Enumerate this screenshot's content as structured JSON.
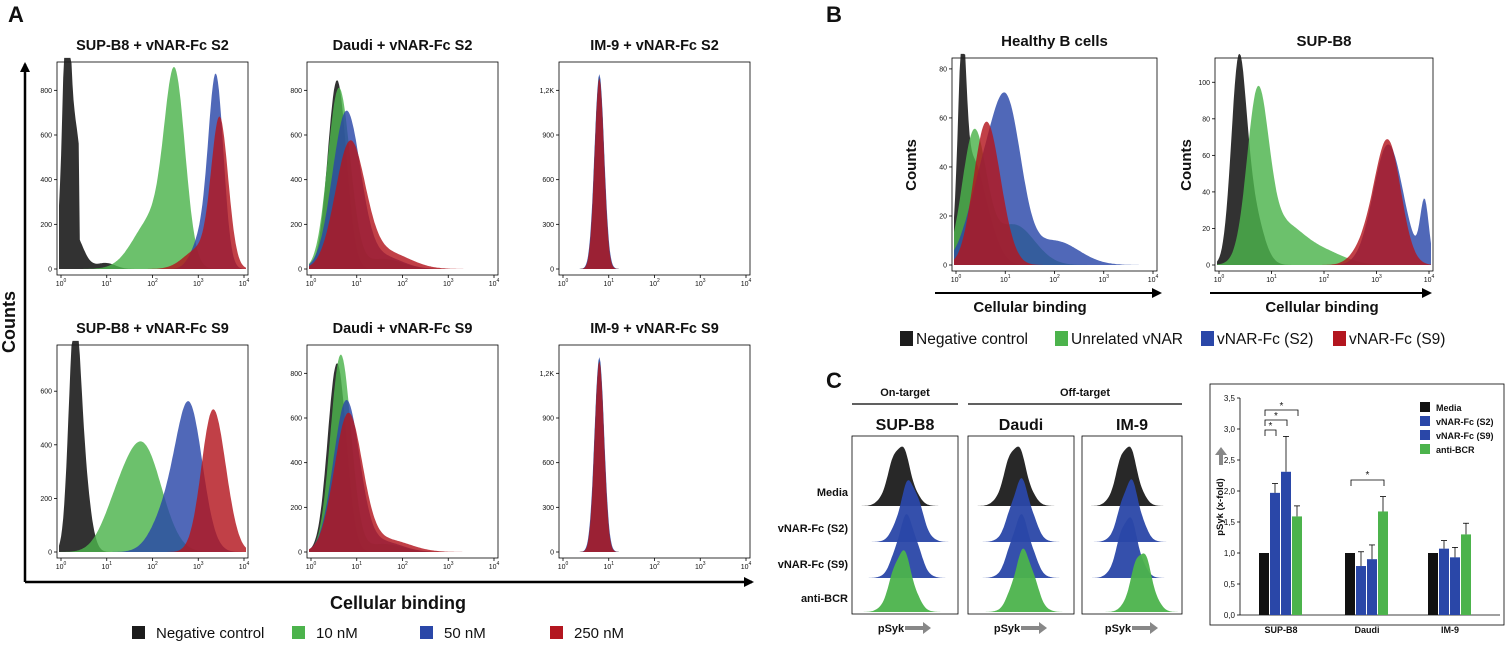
{
  "panel_labels": [
    "A",
    "B",
    "C"
  ],
  "colors": {
    "negative": "#1c1c1c",
    "green": "#4cb34c",
    "blue": "#2a47a8",
    "red": "#b3161f",
    "arrow": "#888888"
  },
  "panelA": {
    "ylabel": "Counts",
    "xlabel": "Cellular binding",
    "plots": [
      {
        "title": "SUP-B8 + vNAR-Fc S2",
        "yticks": [
          "0",
          "200",
          "400",
          "600",
          "800"
        ],
        "ymax": 900,
        "key": "sup_s2"
      },
      {
        "title": "Daudi + vNAR-Fc S2",
        "yticks": [
          "0",
          "200",
          "400",
          "600",
          "800"
        ],
        "ymax": 900,
        "key": "daudi"
      },
      {
        "title": "IM-9 + vNAR-Fc S2",
        "yticks": [
          "0",
          "300",
          "600",
          "900",
          "1,2K"
        ],
        "ymax": 1350,
        "key": "im9"
      },
      {
        "title": "SUP-B8 + vNAR-Fc S9",
        "yticks": [
          "0",
          "200",
          "400",
          "600"
        ],
        "ymax": 750,
        "key": "sup_s9"
      },
      {
        "title": "Daudi + vNAR-Fc S9",
        "yticks": [
          "0",
          "200",
          "400",
          "600",
          "800"
        ],
        "ymax": 900,
        "key": "daudi_s9"
      },
      {
        "title": "IM-9 + vNAR-Fc S9",
        "yticks": [
          "0",
          "300",
          "600",
          "900",
          "1,2K"
        ],
        "ymax": 1350,
        "key": "im9"
      }
    ],
    "legend": [
      {
        "label": "Negative control",
        "color": "#1c1c1c"
      },
      {
        "label": "10 nM",
        "color": "#4cb34c"
      },
      {
        "label": "50 nM",
        "color": "#2a47a8"
      },
      {
        "label": "250 nM",
        "color": "#b3161f"
      }
    ]
  },
  "panelB": {
    "ylabel": "Counts",
    "xlabel": "Cellular binding",
    "plots": [
      {
        "title": "Healthy B cells",
        "yticks": [
          "0",
          "20",
          "40",
          "60",
          "80"
        ],
        "ymax": 82,
        "key": "healthy"
      },
      {
        "title": "SUP-B8",
        "yticks": [
          "0",
          "20",
          "40",
          "60",
          "80",
          "100"
        ],
        "ymax": 110,
        "key": "supb8"
      }
    ],
    "legend": [
      {
        "label": "Negative control",
        "color": "#1c1c1c"
      },
      {
        "label": "Unrelated vNAR",
        "color": "#4cb34c"
      },
      {
        "label": "vNAR-Fc (S2)",
        "color": "#2a47a8"
      },
      {
        "label": "vNAR-Fc (S9)",
        "color": "#b3161f"
      }
    ]
  },
  "panelC": {
    "header_on": "On-target",
    "header_off": "Off-target",
    "cells": [
      "SUP-B8",
      "Daudi",
      "IM-9"
    ],
    "rows": [
      "Media",
      "vNAR-Fc (S2)",
      "vNAR-Fc (S9)",
      "anti-BCR"
    ],
    "xlabel": "pSyk"
  },
  "chart_data": {
    "type": "bar",
    "title": "",
    "xlabel": "",
    "ylabel": "pSyk (x-fold)",
    "ylim": [
      0,
      3.5
    ],
    "yticks": [
      "0,0",
      "0,5",
      "1,0",
      "1,5",
      "2,0",
      "2,5",
      "3,0",
      "3,5"
    ],
    "categories": [
      "SUP-B8",
      "Daudi",
      "IM-9"
    ],
    "series": [
      {
        "name": "Media",
        "color": "#111111",
        "values": [
          1.0,
          1.0,
          1.0
        ],
        "errors": [
          0,
          0,
          0
        ]
      },
      {
        "name": "vNAR-Fc (S2)",
        "color": "#2a47a8",
        "values": [
          1.97,
          0.79,
          1.07
        ],
        "errors": [
          0.15,
          0.23,
          0.13
        ]
      },
      {
        "name": "vNAR-Fc (S9)",
        "color": "#2a47a8",
        "values": [
          2.31,
          0.9,
          0.93
        ],
        "errors": [
          0.57,
          0.23,
          0.16
        ]
      },
      {
        "name": "anti-BCR",
        "color": "#4cb34c",
        "values": [
          1.59,
          1.67,
          1.3
        ],
        "errors": [
          0.17,
          0.24,
          0.18
        ]
      }
    ],
    "significance": [
      "*",
      "*",
      "*",
      "*"
    ]
  }
}
